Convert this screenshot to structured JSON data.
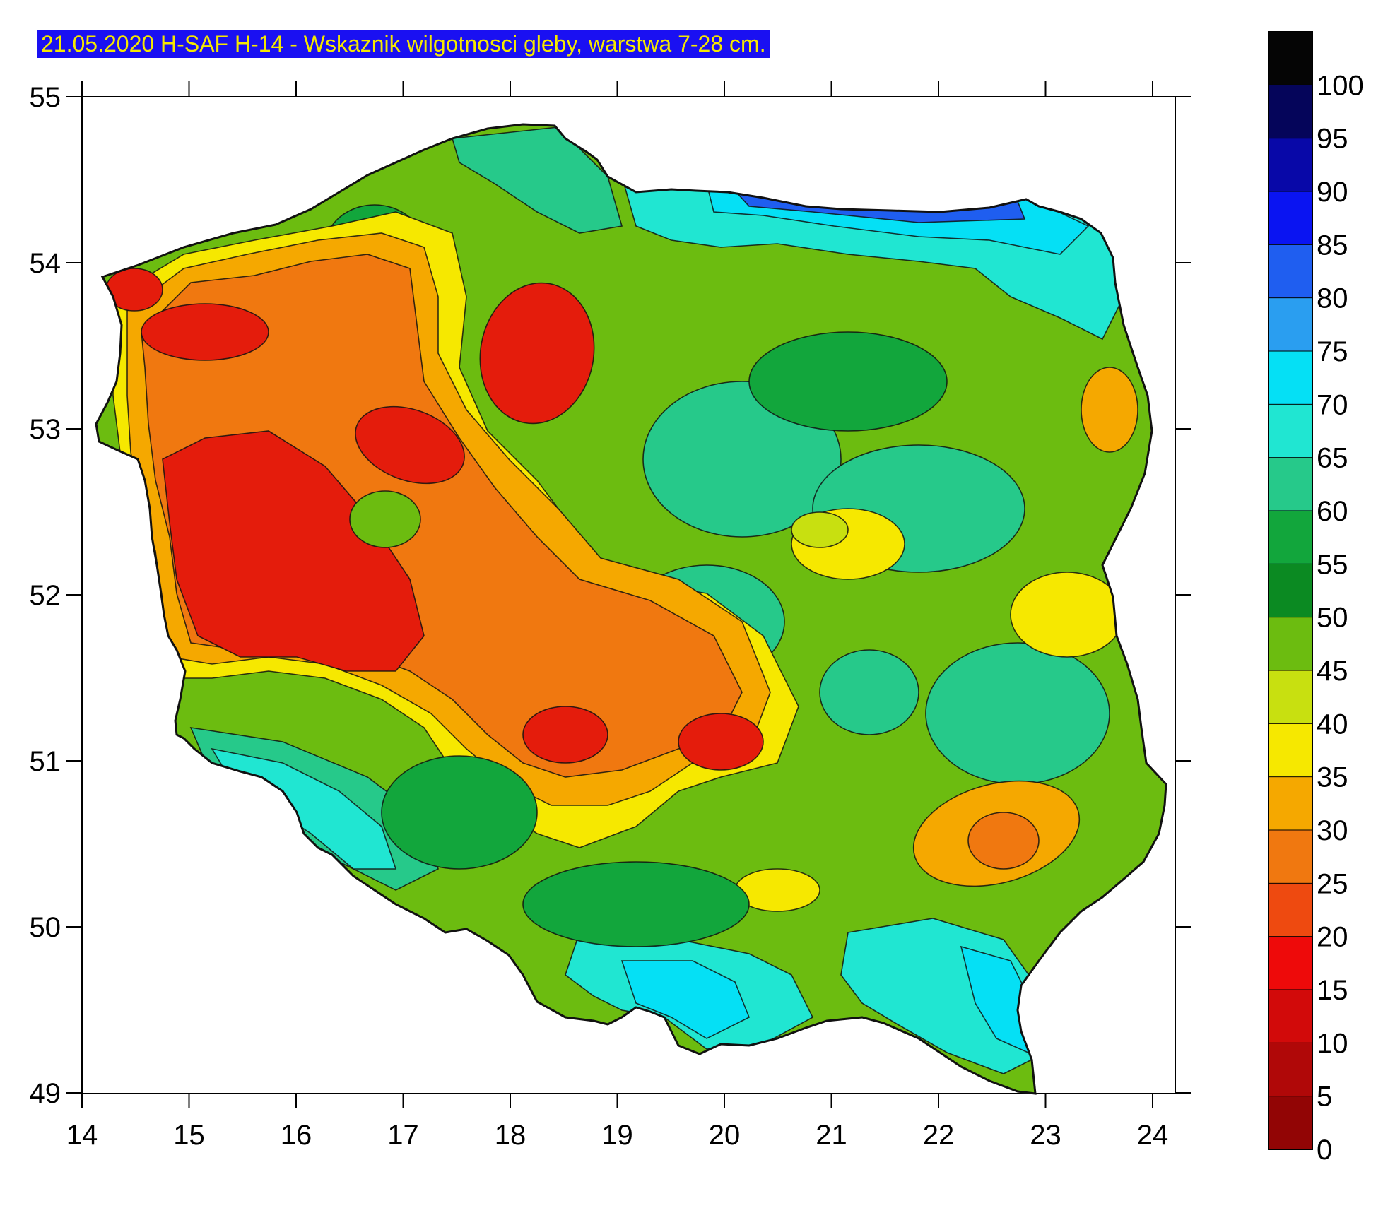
{
  "title": "21.05.2020 H-SAF H-14 - Wskaznik wilgotnosci gleby, warstwa 7-28 cm.",
  "axes": {
    "x_ticks": [
      "14",
      "15",
      "16",
      "17",
      "18",
      "19",
      "20",
      "21",
      "22",
      "23",
      "24"
    ],
    "y_ticks": [
      "55",
      "54",
      "53",
      "52",
      "51",
      "50",
      "49"
    ],
    "x_range": [
      14,
      24.2
    ],
    "y_range": [
      49,
      55
    ]
  },
  "legend": {
    "labels": [
      "100",
      "95",
      "90",
      "85",
      "80",
      "75",
      "70",
      "65",
      "60",
      "55",
      "50",
      "45",
      "40",
      "35",
      "30",
      "25",
      "20",
      "15",
      "10",
      "5",
      "0"
    ],
    "colors": [
      "#050505",
      "#05055a",
      "#0808a8",
      "#0a14f2",
      "#1f5ef0",
      "#2a9ef0",
      "#05e0f5",
      "#20e6d2",
      "#26c98a",
      "#12a63c",
      "#0b8a22",
      "#6cbc10",
      "#c8e010",
      "#f6e800",
      "#f5a800",
      "#f07810",
      "#ee4a10",
      "#ee0a0a",
      "#d20a0a",
      "#b00808",
      "#920505"
    ]
  },
  "map": {
    "region": "Poland",
    "variable": "soil wetness index",
    "color_scale": "0-100",
    "colors": {
      "very_dry": "#e41c0c",
      "dry": "#f07810",
      "dry_moderate": "#f5a800",
      "moderate": "#f6e800",
      "moderate_wet": "#c8e010",
      "wet": "#6cbc10",
      "wetter": "#12a63c",
      "humid": "#26c98a",
      "very_humid": "#20e6d2",
      "saturated": "#05e0f5",
      "blue": "#1f5ef0"
    }
  }
}
